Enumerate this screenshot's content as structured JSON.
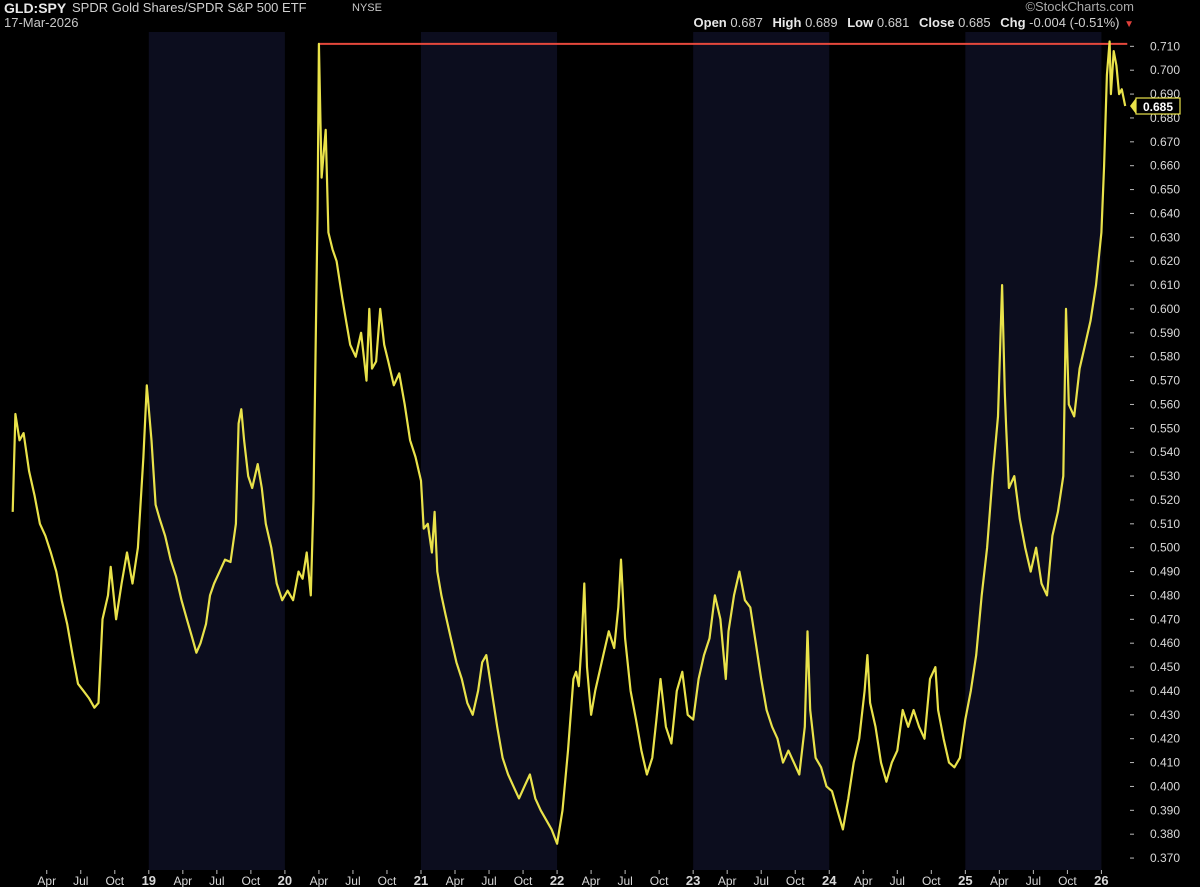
{
  "header": {
    "symbol": "GLD:SPY",
    "description": "SPDR Gold Shares/SPDR S&P 500 ETF",
    "exchange": "NYSE",
    "date": "17-Mar-2026",
    "watermark": "©StockCharts.com",
    "open_label": "Open",
    "open_value": "0.687",
    "high_label": "High",
    "high_value": "0.689",
    "low_label": "Low",
    "low_value": "0.681",
    "close_label": "Close",
    "close_value": "0.685",
    "chg_label": "Chg",
    "chg_value": "-0.004 (-0.51%)",
    "chg_arrow": "▼"
  },
  "colors": {
    "background": "#000000",
    "band_alt": "#0c0d1e",
    "price_line": "#e9e24a",
    "resistance_line": "#e5483c",
    "label_box_border": "#e9e24a",
    "label_text": "#ffffff"
  },
  "chart_data": {
    "type": "line",
    "title": "GLD:SPY",
    "xlabel": "",
    "ylabel": "",
    "ylim": [
      0.365,
      0.716
    ],
    "y_ticks": [
      "0.370",
      "0.380",
      "0.390",
      "0.400",
      "0.410",
      "0.420",
      "0.430",
      "0.440",
      "0.450",
      "0.460",
      "0.470",
      "0.480",
      "0.490",
      "0.500",
      "0.510",
      "0.520",
      "0.530",
      "0.540",
      "0.550",
      "0.560",
      "0.570",
      "0.580",
      "0.590",
      "0.600",
      "0.610",
      "0.620",
      "0.630",
      "0.640",
      "0.650",
      "0.660",
      "0.670",
      "0.680",
      "0.690",
      "0.700",
      "0.710"
    ],
    "x_ticks": [
      {
        "label": "Apr",
        "t": 2018.25
      },
      {
        "label": "Jul",
        "t": 2018.5
      },
      {
        "label": "Oct",
        "t": 2018.75
      },
      {
        "label": "19",
        "t": 2019.0
      },
      {
        "label": "Apr",
        "t": 2019.25
      },
      {
        "label": "Jul",
        "t": 2019.5
      },
      {
        "label": "Oct",
        "t": 2019.75
      },
      {
        "label": "20",
        "t": 2020.0
      },
      {
        "label": "Apr",
        "t": 2020.25
      },
      {
        "label": "Jul",
        "t": 2020.5
      },
      {
        "label": "Oct",
        "t": 2020.75
      },
      {
        "label": "21",
        "t": 2021.0
      },
      {
        "label": "Apr",
        "t": 2021.25
      },
      {
        "label": "Jul",
        "t": 2021.5
      },
      {
        "label": "Oct",
        "t": 2021.75
      },
      {
        "label": "22",
        "t": 2022.0
      },
      {
        "label": "Apr",
        "t": 2022.25
      },
      {
        "label": "Jul",
        "t": 2022.5
      },
      {
        "label": "Oct",
        "t": 2022.75
      },
      {
        "label": "23",
        "t": 2023.0
      },
      {
        "label": "Apr",
        "t": 2023.25
      },
      {
        "label": "Jul",
        "t": 2023.5
      },
      {
        "label": "Oct",
        "t": 2023.75
      },
      {
        "label": "24",
        "t": 2024.0
      },
      {
        "label": "Apr",
        "t": 2024.25
      },
      {
        "label": "Jul",
        "t": 2024.5
      },
      {
        "label": "Oct",
        "t": 2024.75
      },
      {
        "label": "25",
        "t": 2025.0
      },
      {
        "label": "Apr",
        "t": 2025.25
      },
      {
        "label": "Jul",
        "t": 2025.5
      },
      {
        "label": "Oct",
        "t": 2025.75
      },
      {
        "label": "26",
        "t": 2026.0
      }
    ],
    "x_range": [
      2017.98,
      2026.21
    ],
    "year_bands": [
      [
        2019.0,
        2020.0
      ],
      [
        2021.0,
        2022.0
      ],
      [
        2023.0,
        2024.0
      ],
      [
        2025.0,
        2026.0
      ]
    ],
    "series": [
      {
        "points": [
          [
            2018.0,
            0.515
          ],
          [
            2018.02,
            0.556
          ],
          [
            2018.05,
            0.545
          ],
          [
            2018.08,
            0.548
          ],
          [
            2018.12,
            0.532
          ],
          [
            2018.16,
            0.522
          ],
          [
            2018.2,
            0.51
          ],
          [
            2018.24,
            0.505
          ],
          [
            2018.28,
            0.498
          ],
          [
            2018.32,
            0.49
          ],
          [
            2018.36,
            0.478
          ],
          [
            2018.4,
            0.468
          ],
          [
            2018.44,
            0.455
          ],
          [
            2018.48,
            0.443
          ],
          [
            2018.52,
            0.44
          ],
          [
            2018.56,
            0.437
          ],
          [
            2018.6,
            0.433
          ],
          [
            2018.63,
            0.435
          ],
          [
            2018.66,
            0.47
          ],
          [
            2018.7,
            0.48
          ],
          [
            2018.72,
            0.492
          ],
          [
            2018.76,
            0.47
          ],
          [
            2018.8,
            0.485
          ],
          [
            2018.84,
            0.498
          ],
          [
            2018.88,
            0.485
          ],
          [
            2018.92,
            0.5
          ],
          [
            2018.96,
            0.538
          ],
          [
            2018.985,
            0.568
          ],
          [
            2019.02,
            0.545
          ],
          [
            2019.05,
            0.518
          ],
          [
            2019.08,
            0.512
          ],
          [
            2019.12,
            0.505
          ],
          [
            2019.16,
            0.495
          ],
          [
            2019.2,
            0.488
          ],
          [
            2019.24,
            0.478
          ],
          [
            2019.28,
            0.47
          ],
          [
            2019.32,
            0.462
          ],
          [
            2019.35,
            0.456
          ],
          [
            2019.38,
            0.46
          ],
          [
            2019.42,
            0.468
          ],
          [
            2019.45,
            0.48
          ],
          [
            2019.48,
            0.485
          ],
          [
            2019.52,
            0.49
          ],
          [
            2019.56,
            0.495
          ],
          [
            2019.6,
            0.494
          ],
          [
            2019.64,
            0.51
          ],
          [
            2019.66,
            0.552
          ],
          [
            2019.68,
            0.558
          ],
          [
            2019.7,
            0.545
          ],
          [
            2019.73,
            0.53
          ],
          [
            2019.76,
            0.525
          ],
          [
            2019.8,
            0.535
          ],
          [
            2019.83,
            0.525
          ],
          [
            2019.86,
            0.51
          ],
          [
            2019.9,
            0.5
          ],
          [
            2019.94,
            0.485
          ],
          [
            2019.98,
            0.478
          ],
          [
            2020.02,
            0.482
          ],
          [
            2020.06,
            0.478
          ],
          [
            2020.1,
            0.49
          ],
          [
            2020.13,
            0.487
          ],
          [
            2020.16,
            0.498
          ],
          [
            2020.19,
            0.48
          ],
          [
            2020.21,
            0.52
          ],
          [
            2020.225,
            0.58
          ],
          [
            2020.24,
            0.642
          ],
          [
            2020.25,
            0.711
          ],
          [
            2020.27,
            0.655
          ],
          [
            2020.3,
            0.675
          ],
          [
            2020.32,
            0.632
          ],
          [
            2020.35,
            0.625
          ],
          [
            2020.38,
            0.62
          ],
          [
            2020.42,
            0.605
          ],
          [
            2020.45,
            0.595
          ],
          [
            2020.48,
            0.585
          ],
          [
            2020.52,
            0.58
          ],
          [
            2020.56,
            0.59
          ],
          [
            2020.6,
            0.57
          ],
          [
            2020.62,
            0.6
          ],
          [
            2020.64,
            0.575
          ],
          [
            2020.67,
            0.578
          ],
          [
            2020.7,
            0.6
          ],
          [
            2020.73,
            0.585
          ],
          [
            2020.76,
            0.578
          ],
          [
            2020.8,
            0.568
          ],
          [
            2020.84,
            0.573
          ],
          [
            2020.88,
            0.56
          ],
          [
            2020.92,
            0.545
          ],
          [
            2020.96,
            0.538
          ],
          [
            2021.0,
            0.528
          ],
          [
            2021.02,
            0.508
          ],
          [
            2021.05,
            0.51
          ],
          [
            2021.08,
            0.498
          ],
          [
            2021.1,
            0.515
          ],
          [
            2021.12,
            0.49
          ],
          [
            2021.15,
            0.48
          ],
          [
            2021.18,
            0.472
          ],
          [
            2021.22,
            0.462
          ],
          [
            2021.26,
            0.452
          ],
          [
            2021.3,
            0.445
          ],
          [
            2021.34,
            0.435
          ],
          [
            2021.38,
            0.43
          ],
          [
            2021.42,
            0.44
          ],
          [
            2021.45,
            0.452
          ],
          [
            2021.48,
            0.455
          ],
          [
            2021.52,
            0.44
          ],
          [
            2021.56,
            0.425
          ],
          [
            2021.6,
            0.412
          ],
          [
            2021.64,
            0.405
          ],
          [
            2021.68,
            0.4
          ],
          [
            2021.72,
            0.395
          ],
          [
            2021.76,
            0.4
          ],
          [
            2021.8,
            0.405
          ],
          [
            2021.84,
            0.395
          ],
          [
            2021.88,
            0.39
          ],
          [
            2021.92,
            0.386
          ],
          [
            2021.96,
            0.382
          ],
          [
            2022.0,
            0.376
          ],
          [
            2022.04,
            0.39
          ],
          [
            2022.08,
            0.415
          ],
          [
            2022.1,
            0.43
          ],
          [
            2022.12,
            0.445
          ],
          [
            2022.14,
            0.448
          ],
          [
            2022.16,
            0.442
          ],
          [
            2022.18,
            0.46
          ],
          [
            2022.2,
            0.485
          ],
          [
            2022.22,
            0.45
          ],
          [
            2022.25,
            0.43
          ],
          [
            2022.28,
            0.44
          ],
          [
            2022.3,
            0.445
          ],
          [
            2022.34,
            0.455
          ],
          [
            2022.38,
            0.465
          ],
          [
            2022.42,
            0.458
          ],
          [
            2022.45,
            0.475
          ],
          [
            2022.47,
            0.495
          ],
          [
            2022.5,
            0.462
          ],
          [
            2022.54,
            0.44
          ],
          [
            2022.58,
            0.428
          ],
          [
            2022.62,
            0.415
          ],
          [
            2022.66,
            0.405
          ],
          [
            2022.7,
            0.412
          ],
          [
            2022.73,
            0.428
          ],
          [
            2022.76,
            0.445
          ],
          [
            2022.8,
            0.425
          ],
          [
            2022.84,
            0.418
          ],
          [
            2022.88,
            0.44
          ],
          [
            2022.92,
            0.448
          ],
          [
            2022.96,
            0.43
          ],
          [
            2023.0,
            0.428
          ],
          [
            2023.04,
            0.445
          ],
          [
            2023.08,
            0.455
          ],
          [
            2023.12,
            0.462
          ],
          [
            2023.16,
            0.48
          ],
          [
            2023.2,
            0.47
          ],
          [
            2023.24,
            0.445
          ],
          [
            2023.26,
            0.465
          ],
          [
            2023.3,
            0.48
          ],
          [
            2023.34,
            0.49
          ],
          [
            2023.38,
            0.478
          ],
          [
            2023.42,
            0.475
          ],
          [
            2023.46,
            0.46
          ],
          [
            2023.5,
            0.445
          ],
          [
            2023.54,
            0.432
          ],
          [
            2023.58,
            0.425
          ],
          [
            2023.62,
            0.42
          ],
          [
            2023.66,
            0.41
          ],
          [
            2023.7,
            0.415
          ],
          [
            2023.74,
            0.41
          ],
          [
            2023.78,
            0.405
          ],
          [
            2023.82,
            0.425
          ],
          [
            2023.84,
            0.465
          ],
          [
            2023.86,
            0.432
          ],
          [
            2023.9,
            0.412
          ],
          [
            2023.94,
            0.408
          ],
          [
            2023.98,
            0.4
          ],
          [
            2024.02,
            0.398
          ],
          [
            2024.06,
            0.39
          ],
          [
            2024.1,
            0.382
          ],
          [
            2024.14,
            0.395
          ],
          [
            2024.18,
            0.41
          ],
          [
            2024.22,
            0.42
          ],
          [
            2024.26,
            0.44
          ],
          [
            2024.28,
            0.455
          ],
          [
            2024.3,
            0.435
          ],
          [
            2024.34,
            0.425
          ],
          [
            2024.38,
            0.41
          ],
          [
            2024.42,
            0.402
          ],
          [
            2024.46,
            0.41
          ],
          [
            2024.5,
            0.415
          ],
          [
            2024.54,
            0.432
          ],
          [
            2024.58,
            0.425
          ],
          [
            2024.62,
            0.432
          ],
          [
            2024.66,
            0.425
          ],
          [
            2024.7,
            0.42
          ],
          [
            2024.74,
            0.445
          ],
          [
            2024.78,
            0.45
          ],
          [
            2024.8,
            0.432
          ],
          [
            2024.84,
            0.42
          ],
          [
            2024.88,
            0.41
          ],
          [
            2024.92,
            0.408
          ],
          [
            2024.96,
            0.412
          ],
          [
            2025.0,
            0.428
          ],
          [
            2025.04,
            0.44
          ],
          [
            2025.08,
            0.455
          ],
          [
            2025.12,
            0.48
          ],
          [
            2025.16,
            0.5
          ],
          [
            2025.2,
            0.53
          ],
          [
            2025.24,
            0.555
          ],
          [
            2025.27,
            0.61
          ],
          [
            2025.29,
            0.565
          ],
          [
            2025.3,
            0.55
          ],
          [
            2025.32,
            0.525
          ],
          [
            2025.36,
            0.53
          ],
          [
            2025.4,
            0.512
          ],
          [
            2025.44,
            0.5
          ],
          [
            2025.48,
            0.49
          ],
          [
            2025.52,
            0.5
          ],
          [
            2025.56,
            0.485
          ],
          [
            2025.6,
            0.48
          ],
          [
            2025.64,
            0.505
          ],
          [
            2025.68,
            0.515
          ],
          [
            2025.72,
            0.53
          ],
          [
            2025.74,
            0.6
          ],
          [
            2025.76,
            0.56
          ],
          [
            2025.8,
            0.555
          ],
          [
            2025.84,
            0.575
          ],
          [
            2025.88,
            0.585
          ],
          [
            2025.92,
            0.595
          ],
          [
            2025.96,
            0.61
          ],
          [
            2026.0,
            0.632
          ],
          [
            2026.02,
            0.66
          ],
          [
            2026.04,
            0.698
          ],
          [
            2026.06,
            0.712
          ],
          [
            2026.07,
            0.69
          ],
          [
            2026.09,
            0.708
          ],
          [
            2026.11,
            0.702
          ],
          [
            2026.13,
            0.69
          ],
          [
            2026.15,
            0.692
          ],
          [
            2026.175,
            0.685
          ]
        ]
      }
    ],
    "resistance_line": {
      "y": 0.711,
      "t_start": 2020.25,
      "t_end": 2026.19
    },
    "last_value_label": "0.685",
    "last_value": 0.685
  }
}
